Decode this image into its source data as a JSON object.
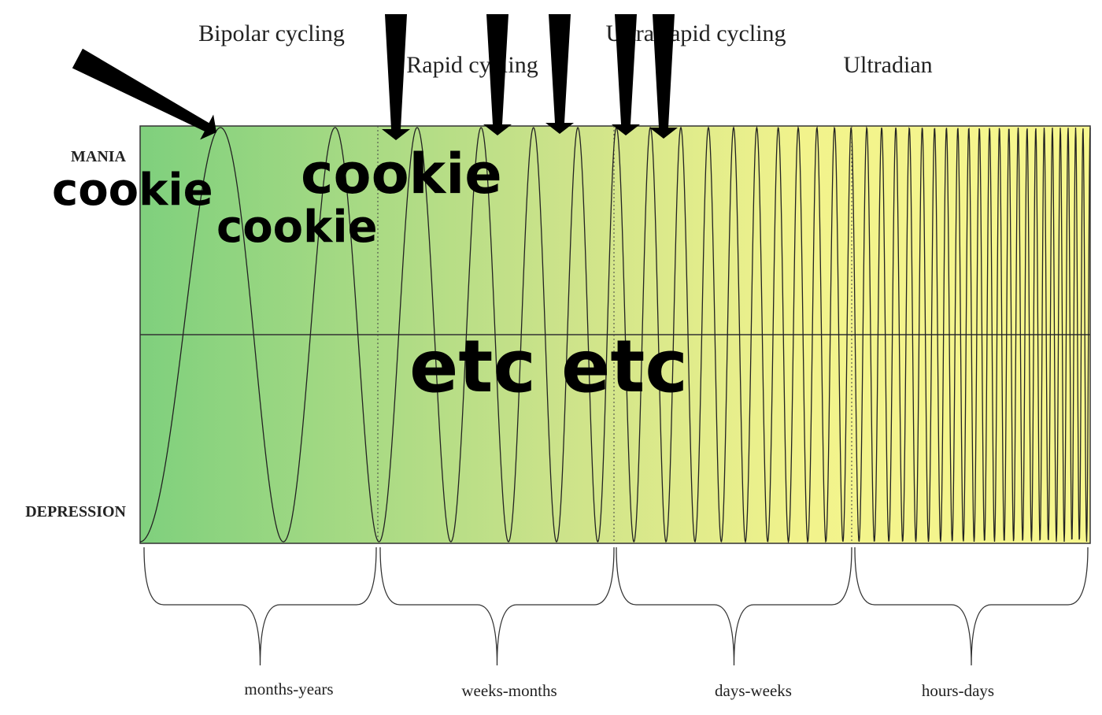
{
  "header": {
    "phases": [
      "Bipolar cycling",
      "Rapid cycling",
      "Ultra-rapid cycling",
      "Ultradian"
    ]
  },
  "axis": {
    "top": "MANIA",
    "bottom": "DEPRESSION"
  },
  "timescales": [
    "months-years",
    "weeks-months",
    "days-weeks",
    "hours-days"
  ],
  "overlay": {
    "captions": [
      "cookie",
      "cookie",
      "cookie"
    ],
    "footer": "etc etc"
  }
}
